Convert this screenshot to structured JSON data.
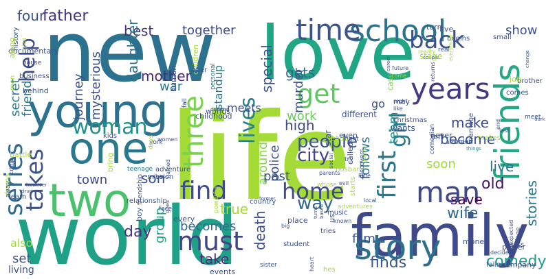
{
  "words": [
    {
      "text": "world",
      "color": "#1fa187"
    },
    {
      "text": "life",
      "color": "#a5db36"
    },
    {
      "text": "new",
      "color": "#2c728e"
    },
    {
      "text": "love",
      "color": "#21a685"
    },
    {
      "text": "family",
      "color": "#3e4a89"
    },
    {
      "text": "young",
      "color": "#2c728e"
    },
    {
      "text": "one",
      "color": "#2a788e"
    },
    {
      "text": "two",
      "color": "#4ac16d"
    },
    {
      "text": "friends",
      "color": "#22a884"
    },
    {
      "text": "story",
      "color": "#2d708e"
    },
    {
      "text": "school",
      "color": "#2c728e"
    },
    {
      "text": "time",
      "color": "#3b528b"
    },
    {
      "text": "years",
      "color": "#453781"
    },
    {
      "text": "man",
      "color": "#3e4a89"
    },
    {
      "text": "find",
      "color": "#3e4a89"
    },
    {
      "text": "series",
      "color": "#31688e"
    },
    {
      "text": "takes",
      "color": "#3b528b"
    },
    {
      "text": "woman",
      "color": "#21918c"
    },
    {
      "text": "must",
      "color": "#414487"
    },
    {
      "text": "home",
      "color": "#3e4a89"
    },
    {
      "text": "first",
      "color": "#2a788e"
    },
    {
      "text": "lives",
      "color": "#27808e"
    },
    {
      "text": "three",
      "color": "#7ad151"
    },
    {
      "text": "back",
      "color": "#3b528b"
    },
    {
      "text": "get",
      "color": "#5ec962"
    },
    {
      "text": "girl",
      "color": "#2a788e"
    },
    {
      "text": "help",
      "color": "#3e4a89"
    },
    {
      "text": "people",
      "color": "#3b528b"
    },
    {
      "text": "city",
      "color": "#414487"
    },
    {
      "text": "way",
      "color": "#31688e"
    },
    {
      "text": "wife",
      "color": "#31688e"
    },
    {
      "text": "comedy",
      "color": "#1e9b8a"
    },
    {
      "text": "finds",
      "color": "#38588c"
    },
    {
      "text": "old",
      "color": "#471365"
    },
    {
      "text": "save",
      "color": "#440154"
    },
    {
      "text": "stories",
      "color": "#2a788e"
    },
    {
      "text": "live",
      "color": "#2d708e"
    },
    {
      "text": "soon",
      "color": "#a0da39"
    },
    {
      "text": "become",
      "color": "#3b528b"
    },
    {
      "text": "team",
      "color": "#21918c"
    },
    {
      "text": "special",
      "color": "#3b528b"
    },
    {
      "text": "gets",
      "color": "#31688e"
    },
    {
      "text": "together",
      "color": "#3e4a89"
    },
    {
      "text": "best",
      "color": "#46327e"
    },
    {
      "text": "father",
      "color": "#46337e"
    },
    {
      "text": "four",
      "color": "#3b528b"
    },
    {
      "text": "daughter",
      "color": "#2c728e"
    },
    {
      "text": "mother",
      "color": "#482878"
    },
    {
      "text": "journey",
      "color": "#3b528b"
    },
    {
      "text": "mysterious",
      "color": "#3b528b"
    },
    {
      "text": "secret",
      "color": "#2a788e"
    },
    {
      "text": "friend",
      "color": "#2a788e"
    },
    {
      "text": "murder",
      "color": "#3b528b"
    },
    {
      "text": "make",
      "color": "#3e4a89"
    },
    {
      "text": "show",
      "color": "#3b528b"
    },
    {
      "text": "war",
      "color": "#2a788e"
    },
    {
      "text": "son",
      "color": "#3b528b"
    },
    {
      "text": "town",
      "color": "#3e4a89"
    },
    {
      "text": "day",
      "color": "#46327e"
    },
    {
      "text": "group",
      "color": "#1fa187"
    },
    {
      "text": "becomes",
      "color": "#31688e"
    },
    {
      "text": "take",
      "color": "#472d7b"
    },
    {
      "text": "true",
      "color": "#a5db36"
    },
    {
      "text": "death",
      "color": "#3b528b"
    },
    {
      "text": "police",
      "color": "#3b528b"
    },
    {
      "text": "high",
      "color": "#3e4a89"
    },
    {
      "text": "around",
      "color": "#86d549"
    },
    {
      "text": "past",
      "color": "#3b528b"
    },
    {
      "text": "follows",
      "color": "#2c728e"
    },
    {
      "text": "film",
      "color": "#3b528b"
    },
    {
      "text": "meets",
      "color": "#3b528b"
    },
    {
      "text": "work",
      "color": "#6ccd5a"
    },
    {
      "text": "standup",
      "color": "#2a788e"
    },
    {
      "text": "go",
      "color": "#3b528b"
    },
    {
      "text": "also",
      "color": "#a5db36"
    },
    {
      "text": "set",
      "color": "#3b528b"
    },
    {
      "text": "living",
      "color": "#3b528b"
    }
  ],
  "filler_words": [
    {
      "text": "adventures",
      "color": "#a5db36"
    },
    {
      "text": "case",
      "color": "#7ad151"
    },
    {
      "text": "returns",
      "color": "#3b528b"
    },
    {
      "text": "small",
      "color": "#3b528b"
    },
    {
      "text": "discovers",
      "color": "#3b528b"
    },
    {
      "text": "things",
      "color": "#2a788e"
    },
    {
      "text": "teenage",
      "color": "#2a788e"
    },
    {
      "text": "country",
      "color": "#3b528b"
    },
    {
      "text": "decides",
      "color": "#3b528b"
    },
    {
      "text": "learn",
      "color": "#3b528b"
    },
    {
      "text": "evil",
      "color": "#3b528b"
    },
    {
      "text": "business",
      "color": "#3b528b"
    },
    {
      "text": "friendship",
      "color": "#3b528b"
    },
    {
      "text": "dreams",
      "color": "#3b528b"
    },
    {
      "text": "hes",
      "color": "#a5db36"
    },
    {
      "text": "wants",
      "color": "#3b528b"
    },
    {
      "text": "turn",
      "color": "#3b528b"
    },
    {
      "text": "dark",
      "color": "#3b528b"
    },
    {
      "text": "little",
      "color": "#3b528b"
    },
    {
      "text": "marriage",
      "color": "#3b528b"
    },
    {
      "text": "york",
      "color": "#3b528b"
    },
    {
      "text": "events",
      "color": "#3b528b"
    },
    {
      "text": "power",
      "color": "#3b528b"
    },
    {
      "text": "however",
      "color": "#3b528b"
    },
    {
      "text": "whose",
      "color": "#a5db36"
    },
    {
      "text": "behind",
      "color": "#3b528b"
    },
    {
      "text": "relationship",
      "color": "#3b528b"
    },
    {
      "text": "personal",
      "color": "#2a788e"
    },
    {
      "text": "turns",
      "color": "#3b528b"
    },
    {
      "text": "career",
      "color": "#3b528b"
    },
    {
      "text": "real",
      "color": "#3b528b"
    },
    {
      "text": "end",
      "color": "#3b528b"
    },
    {
      "text": "fight",
      "color": "#3b528b"
    },
    {
      "text": "order",
      "color": "#3b528b"
    },
    {
      "text": "kids",
      "color": "#3b528b"
    },
    {
      "text": "former",
      "color": "#3b528b"
    },
    {
      "text": "village",
      "color": "#3b528b"
    },
    {
      "text": "crime",
      "color": "#3b528b"
    },
    {
      "text": "parents",
      "color": "#3b528b"
    },
    {
      "text": "house",
      "color": "#3b528b"
    },
    {
      "text": "named",
      "color": "#3b528b"
    },
    {
      "text": "children",
      "color": "#a5db36"
    },
    {
      "text": "heart",
      "color": "#3b528b"
    },
    {
      "text": "future",
      "color": "#3b528b"
    },
    {
      "text": "begins",
      "color": "#3b528b"
    },
    {
      "text": "brother",
      "color": "#3b528b"
    },
    {
      "text": "star",
      "color": "#3b528b"
    },
    {
      "text": "american",
      "color": "#3b528b"
    },
    {
      "text": "women",
      "color": "#3b528b"
    },
    {
      "text": "big",
      "color": "#3b528b"
    },
    {
      "text": "falls",
      "color": "#3b528b"
    },
    {
      "text": "year",
      "color": "#3b528b"
    },
    {
      "text": "social",
      "color": "#3b528b"
    },
    {
      "text": "documentary",
      "color": "#3b528b"
    },
    {
      "text": "every",
      "color": "#3b528b"
    },
    {
      "text": "human",
      "color": "#3b528b"
    },
    {
      "text": "based",
      "color": "#3b528b"
    },
    {
      "text": "night",
      "color": "#3b528b"
    },
    {
      "text": "five",
      "color": "#3b528b"
    },
    {
      "text": "job",
      "color": "#a5db36"
    },
    {
      "text": "even",
      "color": "#3b528b"
    },
    {
      "text": "makes",
      "color": "#a5db36"
    },
    {
      "text": "adventure",
      "color": "#3b528b"
    },
    {
      "text": "powerful",
      "color": "#a5db36"
    },
    {
      "text": "sets",
      "color": "#3b528b"
    },
    {
      "text": "drama",
      "color": "#a5db36"
    },
    {
      "text": "local",
      "color": "#3b528b"
    },
    {
      "text": "history",
      "color": "#3b528b"
    },
    {
      "text": "boy",
      "color": "#3b528b"
    },
    {
      "text": "childhood",
      "color": "#3b528b"
    },
    {
      "text": "music",
      "color": "#3b528b"
    },
    {
      "text": "come",
      "color": "#a5db36"
    },
    {
      "text": "reality",
      "color": "#a5db36"
    },
    {
      "text": "meet",
      "color": "#3b528b"
    },
    {
      "text": "different",
      "color": "#3b528b"
    },
    {
      "text": "comedian",
      "color": "#3b528b"
    },
    {
      "text": "mission",
      "color": "#3b528b"
    },
    {
      "text": "place",
      "color": "#3b528b"
    },
    {
      "text": "money",
      "color": "#3b528b"
    },
    {
      "text": "battle",
      "color": "#a5db36"
    },
    {
      "text": "husband",
      "color": "#a5db36"
    },
    {
      "text": "along",
      "color": "#a5db36"
    },
    {
      "text": "face",
      "color": "#3b528b"
    },
    {
      "text": "worlds",
      "color": "#3b528b"
    },
    {
      "text": "known",
      "color": "#3b528b"
    },
    {
      "text": "christmas",
      "color": "#3b528b"
    },
    {
      "text": "couple",
      "color": "#3b528b"
    },
    {
      "text": "comes",
      "color": "#3b528b"
    },
    {
      "text": "called",
      "color": "#3b528b"
    },
    {
      "text": "never",
      "color": "#3b528b"
    },
    {
      "text": "bring",
      "color": "#a5db36"
    },
    {
      "text": "student",
      "color": "#3b528b"
    },
    {
      "text": "company",
      "color": "#3b528b"
    },
    {
      "text": "drug",
      "color": "#3b528b"
    },
    {
      "text": "starts",
      "color": "#a5db36"
    },
    {
      "text": "men",
      "color": "#a5db36"
    },
    {
      "text": "goes",
      "color": "#3b528b"
    },
    {
      "text": "fall",
      "color": "#3b528b"
    },
    {
      "text": "tries",
      "color": "#3b528b"
    },
    {
      "text": "like",
      "color": "#3b528b"
    },
    {
      "text": "stage",
      "color": "#a5db36"
    },
    {
      "text": "last",
      "color": "#3b528b"
    },
    {
      "text": "game",
      "color": "#a5db36"
    },
    {
      "text": "left",
      "color": "#3b528b"
    },
    {
      "text": "days",
      "color": "#a5db36"
    },
    {
      "text": "sister",
      "color": "#3b528b"
    },
    {
      "text": "unexpected",
      "color": "#3b528b"
    },
    {
      "text": "away",
      "color": "#3b528b"
    },
    {
      "text": "try",
      "color": "#3b528b"
    },
    {
      "text": "good",
      "color": "#a5db36"
    },
    {
      "text": "shes",
      "color": "#3b528b"
    },
    {
      "text": "ever",
      "color": "#3b528b"
    },
    {
      "text": "us",
      "color": "#3b528b"
    },
    {
      "text": "may",
      "color": "#3b528b"
    },
    {
      "text": "everything",
      "color": "#a5db36"
    },
    {
      "text": "change",
      "color": "#3b528b"
    },
    {
      "text": "leads",
      "color": "#a5db36"
    }
  ]
}
